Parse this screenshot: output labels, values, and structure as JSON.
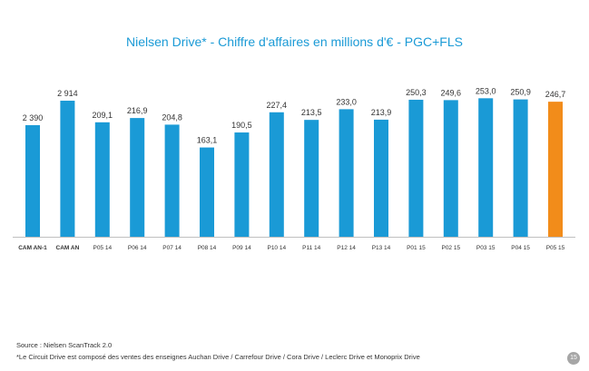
{
  "chart_data": {
    "type": "bar",
    "title": "Nielsen Drive* - Chiffre d'affaires en millions d'€ - PGC+FLS",
    "categories": [
      "CAM AN-1",
      "CAM AN",
      "P05 14",
      "P06 14",
      "P07 14",
      "P08 14",
      "P09 14",
      "P10 14",
      "P11 14",
      "P12 14",
      "P13 14",
      "P01 15",
      "P02 15",
      "P03 15",
      "P04 15",
      "P05 15"
    ],
    "values": [
      2390,
      2914,
      209.1,
      216.9,
      204.8,
      163.1,
      190.5,
      227.4,
      213.5,
      233.0,
      213.9,
      250.3,
      249.6,
      253.0,
      250.9,
      246.7
    ],
    "labels": [
      "2 390",
      "2 914",
      "209,1",
      "216,9",
      "204,8",
      "163,1",
      "190,5",
      "227,4",
      "213,5",
      "233,0",
      "213,9",
      "250,3",
      "249,6",
      "253,0",
      "250,9",
      "246,7"
    ],
    "scale_groups": [
      {
        "name": "",
        "indices": [
          0,
          1
        ],
        "ylim": [
          0,
          3400
        ]
      },
      {
        "name": "",
        "indices": [
          2,
          3,
          4,
          5,
          6,
          7,
          8,
          9,
          10,
          11,
          12,
          13,
          14,
          15
        ],
        "ylim": [
          0,
          290
        ]
      }
    ],
    "highlight_index": 15,
    "colors": {
      "bar": "#1a9ad6",
      "highlight": "#f28c1a",
      "title": "#1a9ad6"
    },
    "grid": false,
    "legend": "none"
  },
  "footer": {
    "source": "Source : Nielsen ScanTrack 2.0",
    "note": "*Le Circuit Drive est composé des ventes des enseignes Auchan Drive / Carrefour Drive / Cora Drive / Leclerc Drive et Monoprix Drive",
    "page_number": "15"
  }
}
